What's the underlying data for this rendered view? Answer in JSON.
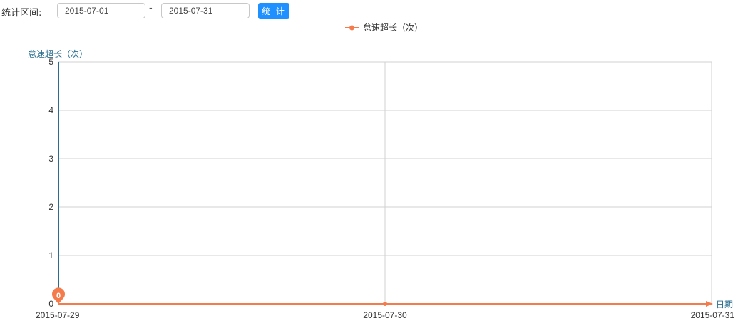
{
  "filter": {
    "label": "统计区间:",
    "start_date": "2015-07-01",
    "end_date": "2015-07-31",
    "separator": "-",
    "submit_label": "统 计"
  },
  "colors": {
    "series": "#f47c4c",
    "axis": "#2a6e8e",
    "grid": "#d0d0d0",
    "button": "#1e90ff"
  },
  "chart_data": {
    "type": "line",
    "title": "",
    "legend": {
      "position": "top-center",
      "entries": [
        "怠速超长（次）"
      ]
    },
    "ylabel": "怠速超长（次）",
    "xlabel": "日期",
    "ylim": [
      0,
      5
    ],
    "yticks": [
      0,
      1,
      2,
      3,
      4,
      5
    ],
    "grid": true,
    "categories": [
      "2015-07-29",
      "2015-07-30",
      "2015-07-31"
    ],
    "series": [
      {
        "name": "怠速超长（次）",
        "values": [
          0,
          0,
          0
        ]
      }
    ],
    "annotations": [
      {
        "type": "max-pin",
        "category": "2015-07-29",
        "value": 0,
        "label": "0"
      }
    ]
  }
}
